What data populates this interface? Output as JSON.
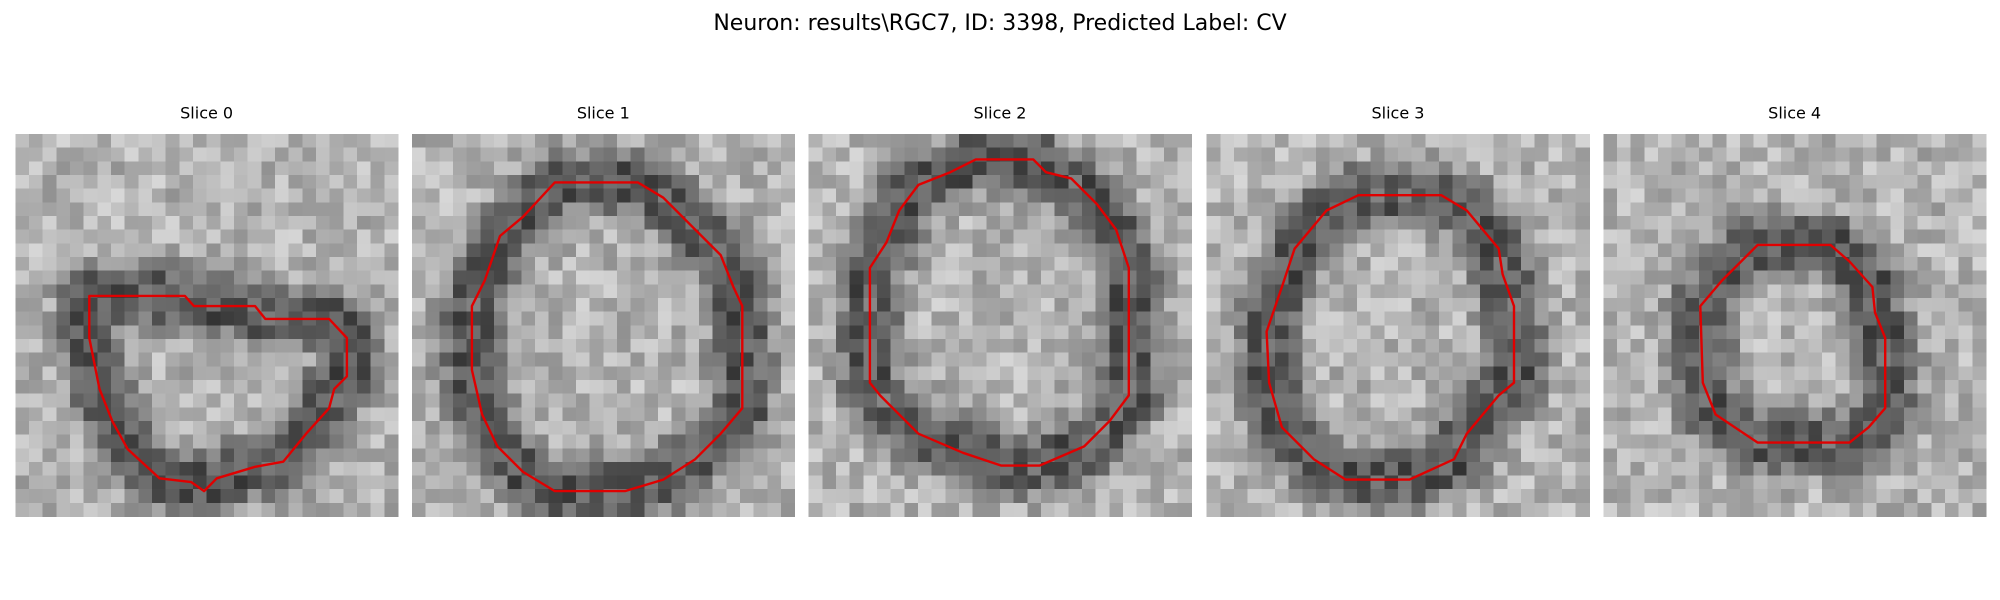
{
  "title": "Neuron: results\\RGC7, ID: 3398, Predicted Label: CV",
  "panels": [
    {
      "title": "Slice 0"
    },
    {
      "title": "Slice 1"
    },
    {
      "title": "Slice 2"
    },
    {
      "title": "Slice 3"
    },
    {
      "title": "Slice 4"
    }
  ]
}
